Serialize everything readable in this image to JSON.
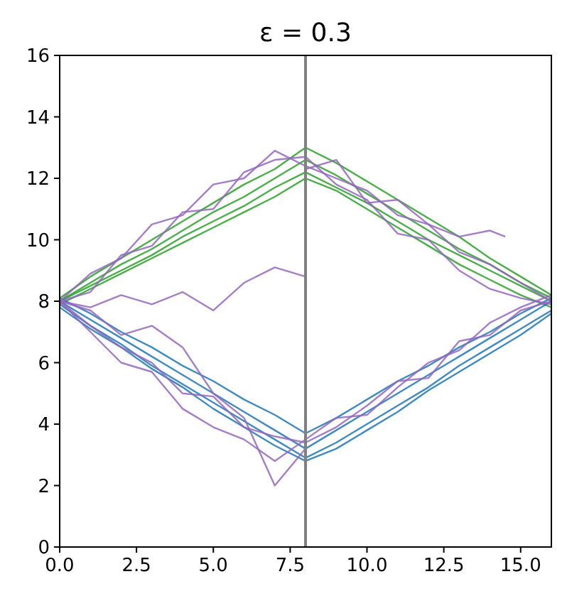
{
  "chart_data": {
    "type": "line",
    "title": "ε =  0.3",
    "xlim": [
      0,
      16
    ],
    "ylim": [
      0,
      16
    ],
    "xticks": [
      {
        "value": 0,
        "label": "0.0"
      },
      {
        "value": 2.5,
        "label": "2.5"
      },
      {
        "value": 5,
        "label": "5.0"
      },
      {
        "value": 7.5,
        "label": "7.5"
      },
      {
        "value": 10,
        "label": "10.0"
      },
      {
        "value": 12.5,
        "label": "12.5"
      },
      {
        "value": 15,
        "label": "15.0"
      }
    ],
    "yticks": [
      0,
      2,
      4,
      6,
      8,
      10,
      12,
      14,
      16
    ],
    "x": [
      0,
      1,
      2,
      3,
      4,
      5,
      6,
      7,
      8,
      9,
      10,
      11,
      12,
      13,
      14,
      15,
      16
    ],
    "grid": false,
    "ref_lines": [
      {
        "axis": "x",
        "value": 8,
        "color": "#808080"
      }
    ],
    "series": [
      {
        "color": "#2ca02c",
        "values": [
          8,
          8.6,
          9.2,
          9.7,
          10.3,
          10.9,
          11.4,
          12.0,
          12.6,
          12.1,
          11.5,
          10.9,
          10.3,
          9.7,
          9.2,
          8.6,
          8.1
        ]
      },
      {
        "color": "#2ca02c",
        "values": [
          8,
          8.5,
          9.0,
          9.5,
          10.1,
          10.6,
          11.1,
          11.7,
          12.2,
          11.7,
          11.2,
          10.6,
          10.0,
          9.5,
          9.0,
          8.5,
          8.0
        ]
      },
      {
        "color": "#2ca02c",
        "values": [
          8.1,
          8.8,
          9.4,
          10.0,
          10.6,
          11.2,
          11.8,
          12.3,
          13.0,
          12.5,
          11.9,
          11.3,
          10.7,
          10.1,
          9.4,
          8.8,
          8.2
        ]
      },
      {
        "color": "#2ca02c",
        "values": [
          7.9,
          8.4,
          8.9,
          9.4,
          9.9,
          10.4,
          10.9,
          11.4,
          12.0,
          11.6,
          11.0,
          10.4,
          9.8,
          9.2,
          8.7,
          8.2,
          7.8
        ]
      },
      {
        "color": "#1f77b4",
        "values": [
          8,
          7.4,
          6.8,
          6.2,
          5.6,
          5.0,
          4.4,
          3.8,
          3.2,
          3.8,
          4.4,
          5.0,
          5.6,
          6.2,
          6.8,
          7.4,
          8.0
        ]
      },
      {
        "color": "#1f77b4",
        "values": [
          7.9,
          7.2,
          6.6,
          5.9,
          5.3,
          4.7,
          4.1,
          3.5,
          2.9,
          3.4,
          4.0,
          4.6,
          5.2,
          5.9,
          6.5,
          7.1,
          7.7
        ]
      },
      {
        "color": "#1f77b4",
        "values": [
          8.1,
          7.6,
          7.0,
          6.5,
          5.9,
          5.4,
          4.8,
          4.3,
          3.7,
          4.2,
          4.8,
          5.4,
          5.9,
          6.5,
          7.0,
          7.6,
          8.1
        ]
      },
      {
        "color": "#1f77b4",
        "values": [
          7.8,
          7.1,
          6.5,
          5.8,
          5.2,
          4.5,
          3.9,
          3.3,
          2.8,
          3.2,
          3.8,
          4.4,
          5.1,
          5.7,
          6.3,
          6.9,
          7.6
        ]
      },
      {
        "color": "#9467bd",
        "values": [
          8,
          8.9,
          9.4,
          10.5,
          10.8,
          11.8,
          12.0,
          12.9,
          12.4,
          12.0,
          11.6,
          10.8,
          10.5,
          9.6,
          9.2,
          8.6,
          8.0
        ]
      },
      {
        "color": "#9467bd",
        "values": [
          8,
          8.3,
          9.5,
          9.8,
          10.9,
          11.0,
          12.2,
          12.6,
          12.7,
          11.8,
          11.3,
          10.2,
          10.0,
          9.0,
          8.4,
          8.1,
          7.9
        ]
      },
      {
        "color": "#9467bd",
        "values": [
          8,
          7.2,
          6.5,
          6.0,
          5.0,
          4.9,
          3.9,
          3.6,
          3.4,
          3.9,
          4.6,
          5.4,
          5.5,
          6.7,
          6.9,
          7.7,
          8.0
        ]
      },
      {
        "color": "#9467bd",
        "values": [
          8,
          7.0,
          6.0,
          5.7,
          4.5,
          3.9,
          3.5,
          2.8,
          3.5,
          4.2,
          4.3,
          5.2,
          6.0,
          6.4,
          7.3,
          7.8,
          8.2
        ]
      },
      {
        "color": "#9467bd",
        "x": [
          0,
          1,
          2,
          3,
          4,
          5,
          6,
          7,
          8
        ],
        "values": [
          8,
          7.8,
          8.2,
          7.9,
          8.3,
          7.7,
          8.6,
          9.1,
          8.8
        ]
      },
      {
        "color": "#9467bd",
        "x": [
          0,
          1,
          2,
          3,
          4,
          5,
          6,
          7,
          8
        ],
        "values": [
          8,
          7.7,
          6.9,
          7.2,
          6.5,
          5.0,
          4.2,
          2.0,
          3.2
        ]
      },
      {
        "color": "#9467bd",
        "x": [
          8,
          9,
          10,
          11,
          12,
          13,
          14,
          14.5
        ],
        "values": [
          12.3,
          12.6,
          11.2,
          11.3,
          10.5,
          10.1,
          10.3,
          10.1
        ]
      }
    ]
  }
}
